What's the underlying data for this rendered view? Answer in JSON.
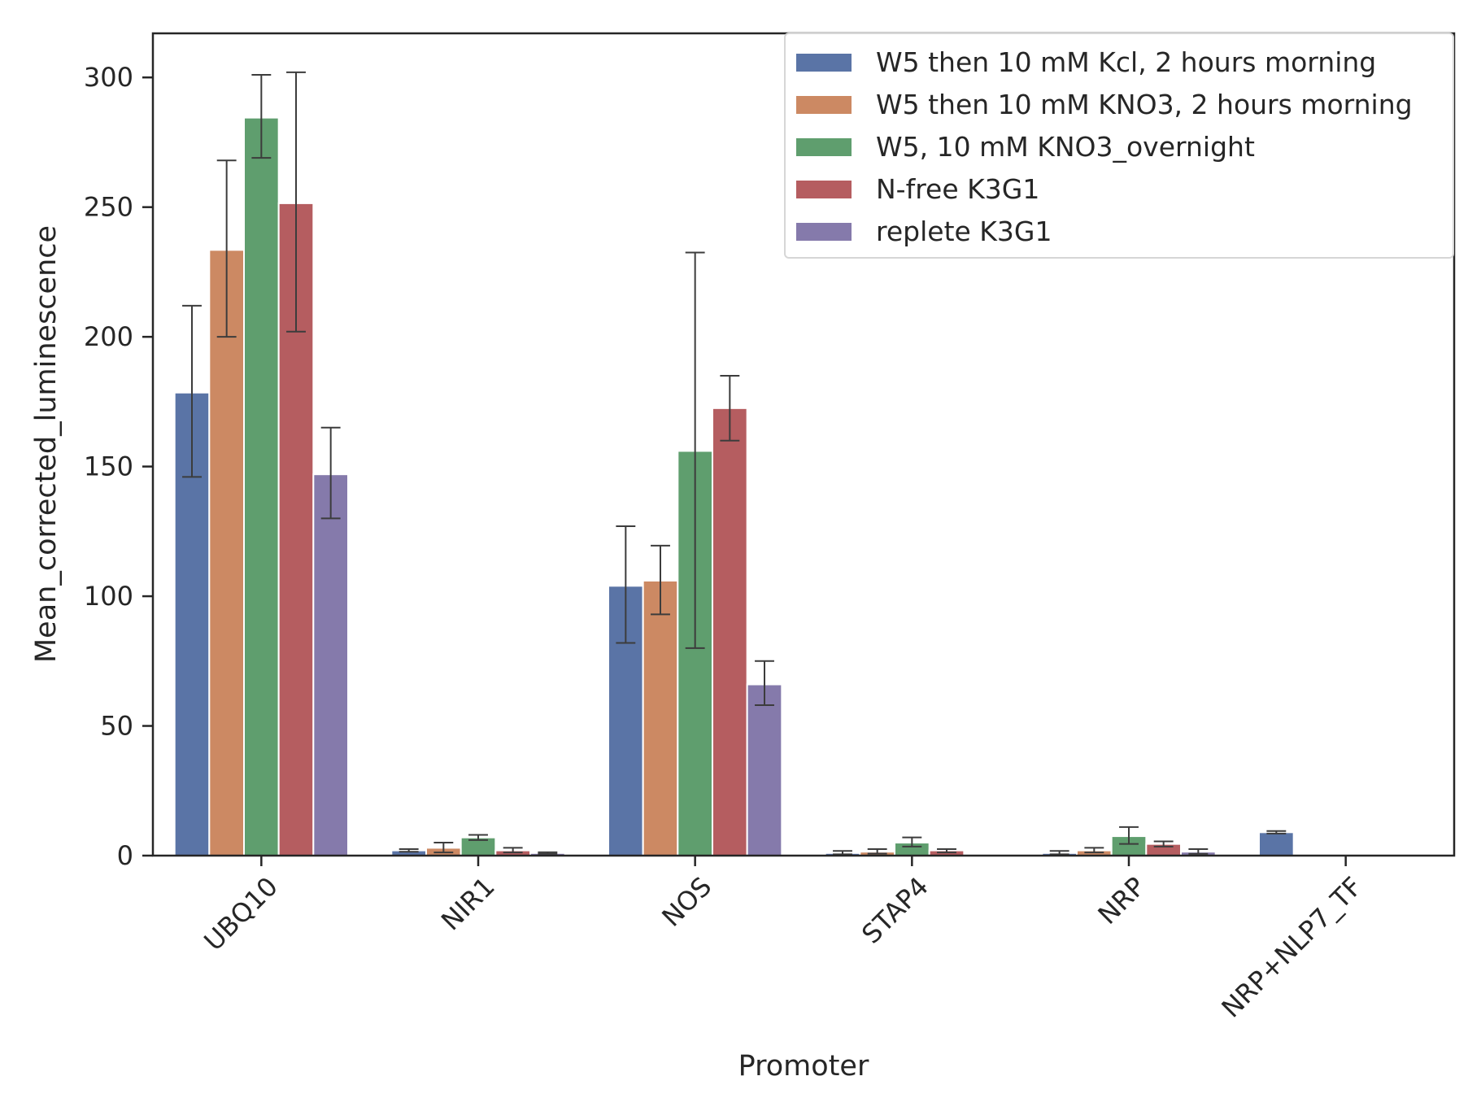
{
  "chart_data": {
    "type": "bar",
    "xlabel": "Promoter",
    "ylabel": "Mean_corrected_luminescence",
    "ylim": [
      0,
      317
    ],
    "yticks": [
      0,
      50,
      100,
      150,
      200,
      250,
      300
    ],
    "categories": [
      "UBQ10",
      "NIR1",
      "NOS",
      "STAP4",
      "NRP",
      "NRP+NLP7_TF"
    ],
    "legend_position": "top-right",
    "grid": false,
    "series": [
      {
        "name": "W5 then 10 mM Kcl, 2 hours morning",
        "color": "#5a74a6",
        "values": [
          178.5,
          2,
          104,
          1,
          1,
          9
        ],
        "err_low": [
          146,
          1.5,
          82,
          0.5,
          0.5,
          8.5
        ],
        "err_high": [
          212,
          2.5,
          127,
          1.8,
          1.8,
          9.5
        ]
      },
      {
        "name": "W5 then 10 mM KNO3, 2 hours morning",
        "color": "#cc8963",
        "values": [
          233.5,
          3,
          106,
          1.5,
          2,
          null
        ],
        "err_low": [
          200,
          1.2,
          93,
          0.8,
          1.2,
          null
        ],
        "err_high": [
          268,
          5,
          119.5,
          2.5,
          3,
          null
        ]
      },
      {
        "name": "W5, 10 mM KNO3_overnight",
        "color": "#5f9e6e",
        "values": [
          284.5,
          7,
          156,
          5,
          7.5,
          null
        ],
        "err_low": [
          269,
          6,
          80,
          3.5,
          4.5,
          null
        ],
        "err_high": [
          301,
          8,
          232.5,
          7,
          11,
          null
        ]
      },
      {
        "name": "N-free K3G1",
        "color": "#b55d60",
        "values": [
          251.5,
          2,
          172.5,
          2,
          4.5,
          null
        ],
        "err_low": [
          202,
          1.2,
          160,
          1.2,
          3.5,
          null
        ],
        "err_high": [
          302,
          3,
          185,
          2.5,
          5.5,
          null
        ]
      },
      {
        "name": "replete K3G1",
        "color": "#857aab",
        "values": [
          147,
          1,
          66,
          0,
          1.5,
          null
        ],
        "err_low": [
          130,
          0.7,
          58,
          0,
          0.7,
          null
        ],
        "err_high": [
          165,
          1.3,
          75,
          0,
          2.5,
          null
        ]
      }
    ]
  }
}
